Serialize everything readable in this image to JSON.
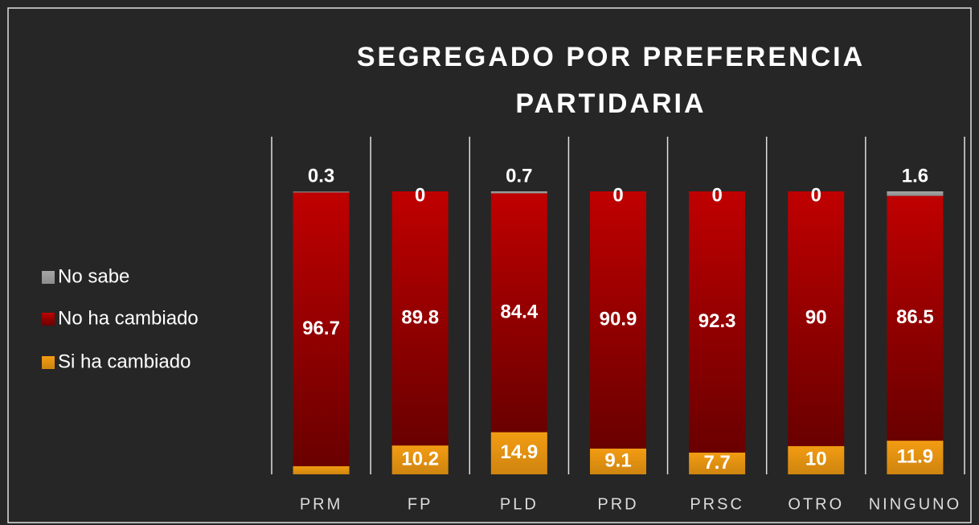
{
  "chart_data": {
    "type": "stacked_bar",
    "title": "SEGREGADO POR PREFERENCIA PARTIDARIA",
    "categories": [
      "PRM",
      "FP",
      "PLD",
      "PRD",
      "PRSC",
      "OTRO",
      "NINGUNO"
    ],
    "ylim": [
      0,
      100
    ],
    "series": [
      {
        "name": "Si ha cambiado",
        "color": "#f39c12",
        "values": [
          2.9,
          10.2,
          14.9,
          9.1,
          7.7,
          10,
          11.9
        ]
      },
      {
        "name": "No ha cambiado",
        "color": "#c00000",
        "values": [
          96.7,
          89.8,
          84.4,
          90.9,
          92.3,
          90,
          86.5
        ]
      },
      {
        "name": "No sabe",
        "color": "#a6a6a6",
        "values": [
          0.3,
          0,
          0.7,
          0,
          0,
          0,
          1.6
        ]
      }
    ]
  }
}
